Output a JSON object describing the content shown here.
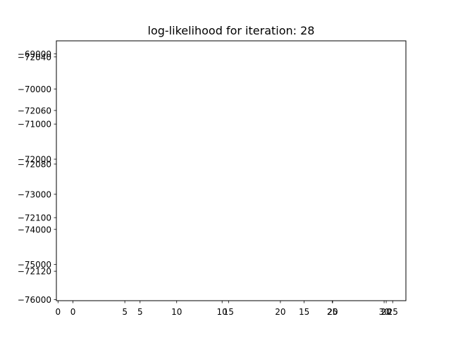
{
  "chart_data": [
    {
      "type": "line",
      "title": "log-likelihood for iteration: 28",
      "xlabel": "",
      "ylabel": "",
      "xlim": [
        -1.6,
        32.1
      ],
      "ylim": [
        -76030,
        -68630
      ],
      "x_ticks": [
        0,
        5,
        10,
        15,
        20,
        25,
        30
      ],
      "y_ticks": [
        -76000,
        -75000,
        -74000,
        -73000,
        -72000,
        -71000,
        -70000,
        -69000
      ],
      "y_tick_labels": [
        "−76000",
        "−75000",
        "−74000",
        "−73000",
        "−72000",
        "−71000",
        "−70000",
        "−69000"
      ],
      "grid": false,
      "series": []
    },
    {
      "type": "line",
      "title": "",
      "xlabel": "",
      "ylabel": "",
      "xlim": [
        -0.1,
        21.2
      ],
      "ylim": [
        -72131,
        -72034
      ],
      "x_ticks": [
        0,
        5,
        10,
        15,
        20
      ],
      "y_ticks": [
        -72120,
        -72100,
        -72080,
        -72060,
        -72040
      ],
      "y_tick_labels": [
        "−72120",
        "−72100",
        "−72080",
        "−72060",
        "−72040"
      ],
      "grid": false,
      "series": []
    },
    {
      "type": "line",
      "title": "",
      "xlabel": "",
      "ylabel": "",
      "xlim": [
        -3,
        26.1
      ],
      "ylim": [
        0,
        1
      ],
      "x_ticks": [
        20,
        25
      ],
      "y_ticks": [],
      "y_tick_labels": [],
      "grid": false,
      "series": []
    }
  ]
}
